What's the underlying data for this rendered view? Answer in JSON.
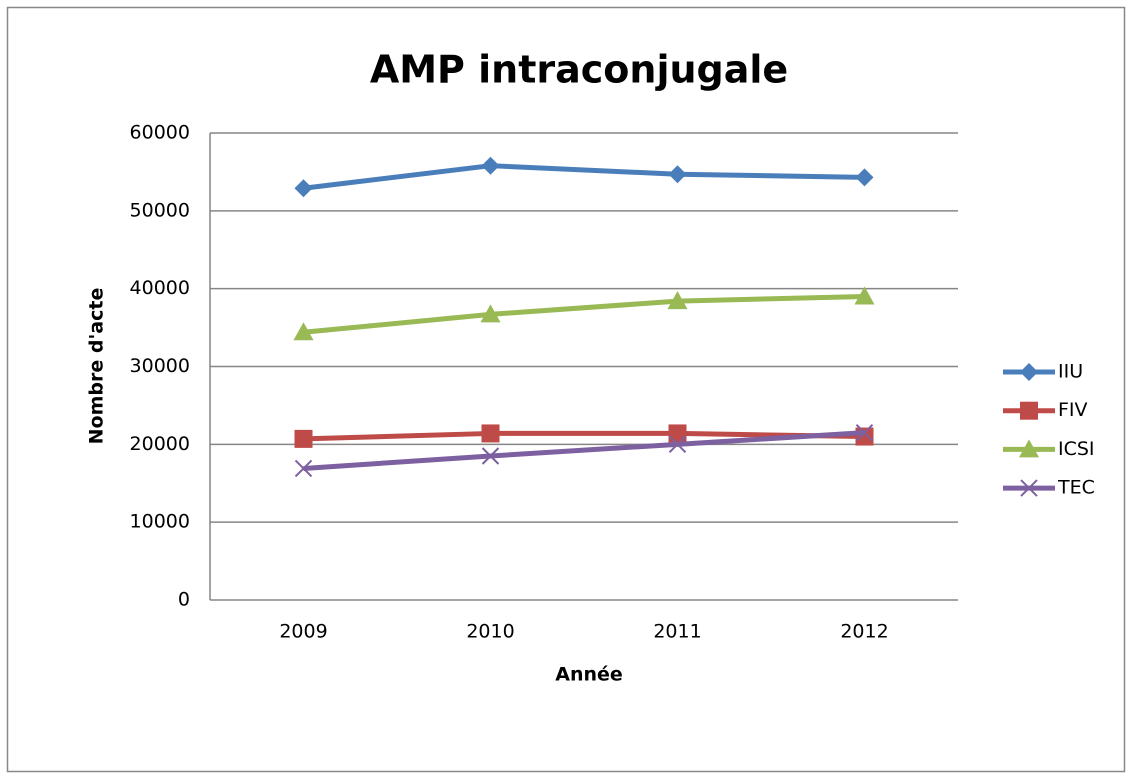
{
  "chart_data": {
    "type": "line",
    "title": "AMP intraconjugale",
    "x_label": "Année",
    "y_label": "Nombre d'acte",
    "categories": [
      "2009",
      "2010",
      "2011",
      "2012"
    ],
    "series": [
      {
        "name": "IIU",
        "color": "#4a7ebb",
        "marker": "diamond",
        "values": [
          52900,
          55800,
          54700,
          54300
        ]
      },
      {
        "name": "FIV",
        "color": "#be4b48",
        "marker": "square",
        "values": [
          20700,
          21400,
          21400,
          21000
        ]
      },
      {
        "name": "ICSI",
        "color": "#98b954",
        "marker": "triangle",
        "values": [
          34400,
          36700,
          38400,
          39000
        ]
      },
      {
        "name": "TEC",
        "color": "#7d60a0",
        "marker": "x",
        "values": [
          16900,
          18500,
          20000,
          21500
        ]
      }
    ],
    "ylim": [
      0,
      60000
    ],
    "yticks": [
      0,
      10000,
      20000,
      30000,
      40000,
      50000,
      60000
    ],
    "grid": true,
    "legend": "right"
  }
}
